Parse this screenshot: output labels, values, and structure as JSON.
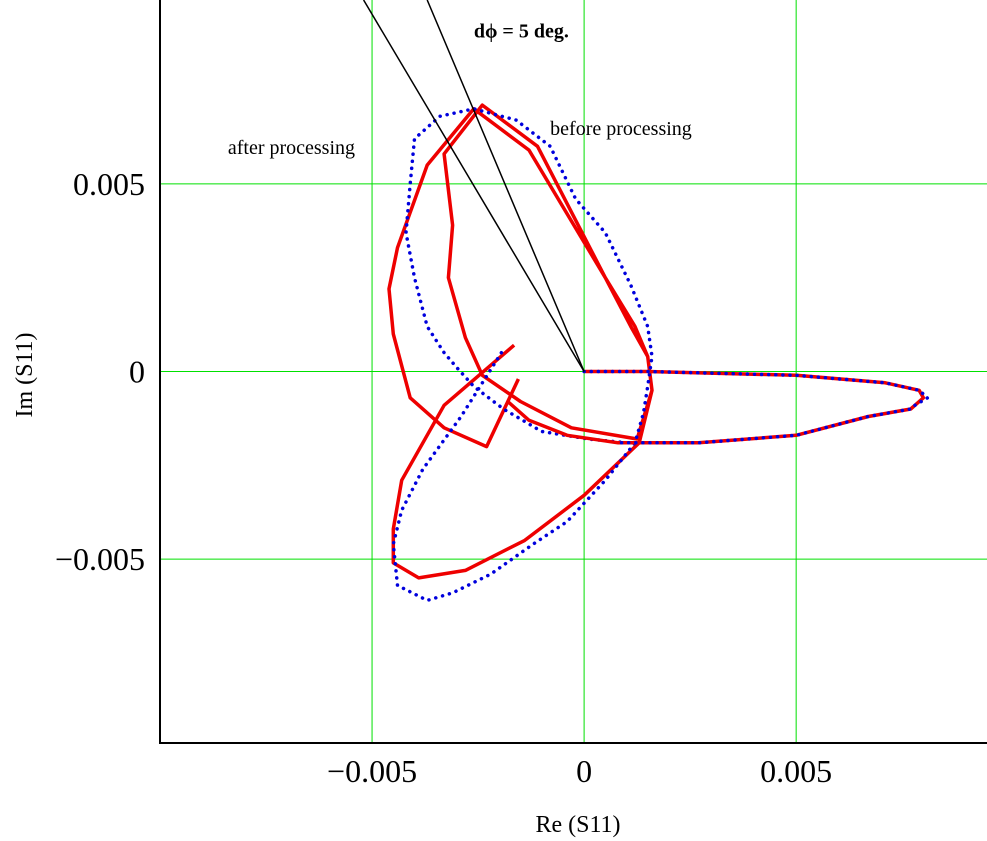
{
  "chart_data": {
    "type": "line",
    "title": "",
    "xlabel": "Re (S11)",
    "ylabel": "Im (S11)",
    "xlim": [
      -0.01,
      0.0095
    ],
    "ylim": [
      -0.0099,
      0.0099
    ],
    "x_ticks": [
      -0.005,
      0,
      0.005
    ],
    "y_ticks": [
      -0.005,
      0,
      0.005
    ],
    "x_tick_labels": [
      "−0.005",
      "0",
      "0.005"
    ],
    "y_tick_labels": [
      "−0.005",
      "0",
      "0.005"
    ],
    "grid": true,
    "grid_color": "#00e000",
    "annotations": [
      {
        "id": "dphi",
        "text": "dϕ = 5 deg.",
        "bold": true,
        "x": -0.0026,
        "y": 0.0089
      },
      {
        "id": "before",
        "text": "before processing",
        "x": -0.0008,
        "y": 0.0063
      },
      {
        "id": "after",
        "text": "after processing",
        "x": -0.0084,
        "y": 0.0058
      }
    ],
    "series": [
      {
        "style": "solid",
        "color": "#ee0000",
        "width": 3.5,
        "x": [
          -0.00165,
          -0.0033,
          -0.0043,
          -0.0045,
          -0.0045,
          -0.0039,
          -0.0028,
          -0.0014,
          0,
          0.0013,
          0.0016,
          0.0015,
          0.0012,
          0.0005,
          -0.0011,
          -0.0024,
          -0.0033,
          -0.0031,
          -0.0032,
          -0.0028,
          -0.0024,
          -0.0015,
          -0.0003,
          0.00125,
          0.0016,
          0.0015,
          0.0011,
          0.0005,
          -0.0013,
          -0.0026,
          -0.0037,
          -0.0044,
          -0.0046,
          -0.0045,
          -0.0041,
          -0.0033,
          -0.0023,
          -0.00155
        ],
        "y": [
          0.0007,
          -0.0009,
          -0.0029,
          -0.0042,
          -0.0051,
          -0.0055,
          -0.0053,
          -0.0045,
          -0.0033,
          -0.0019,
          -0.0005,
          0.0004,
          0.0012,
          0.0025,
          0.006,
          0.0071,
          0.0058,
          0.0039,
          0.0025,
          0.0009,
          -0.0001,
          -0.0008,
          -0.0015,
          -0.0018,
          -0.0005,
          0.0004,
          0.0012,
          0.0025,
          0.0059,
          0.007,
          0.0055,
          0.0033,
          0.0022,
          0.001,
          -0.0007,
          -0.0015,
          -0.002,
          -0.0002
        ]
      },
      {
        "style": "dotted",
        "color": "#0000dd",
        "width": 3.5,
        "x": [
          -0.00195,
          -0.0029,
          -0.0038,
          -0.0043,
          -0.0045,
          -0.0044,
          -0.0037,
          -0.0031,
          -0.0022,
          -0.0012,
          -0.0004,
          0.0005,
          0.0012,
          0.0014,
          0.0015,
          0.0016,
          0.0015,
          0.0011,
          0.0005,
          -0.0002,
          -0.0008,
          -0.0016,
          -0.0026,
          -0.0034,
          -0.004,
          -0.0041,
          -0.0042,
          -0.004,
          -0.0037,
          -0.0033,
          -0.003,
          -0.0026,
          -0.0019,
          -0.001,
          0.0001,
          0.001,
          0.0016
        ],
        "y": [
          0.0005,
          -0.0012,
          -0.0026,
          -0.0037,
          -0.0046,
          -0.0057,
          -0.0061,
          -0.0059,
          -0.0054,
          -0.0046,
          -0.004,
          -0.0029,
          -0.0019,
          -0.0011,
          -0.0004,
          0.0004,
          0.0012,
          0.0023,
          0.0037,
          0.0046,
          0.006,
          0.0067,
          0.007,
          0.0068,
          0.0062,
          0.005,
          0.0037,
          0.0025,
          0.0012,
          0.0005,
          0.0001,
          -0.0004,
          -0.001,
          -0.0016,
          -0.0018,
          -0.0019,
          -0.0019
        ]
      },
      {
        "style": "solid",
        "color": "#ee0000",
        "width": 3.5,
        "x": [
          0,
          0.0015,
          0.005,
          0.0071,
          0.0079,
          0.008,
          0.0078,
          0.0077,
          0.0067,
          0.005,
          0.0027,
          0.0008,
          -0.0004,
          -0.0013,
          -0.0018
        ],
        "y": [
          0,
          0,
          -0.0001,
          -0.0003,
          -0.0005,
          -0.0007,
          -0.0009,
          -0.001,
          -0.0012,
          -0.0017,
          -0.0019,
          -0.0019,
          -0.0017,
          -0.0013,
          -0.0008
        ]
      },
      {
        "style": "dotted",
        "color": "#0000dd",
        "width": 3.5,
        "x": [
          0,
          0.0015,
          0.005,
          0.0071,
          0.0079,
          0.0081,
          0.0078,
          0.0077,
          0.0067,
          0.005,
          0.0027,
          0.0008
        ],
        "y": [
          0,
          0,
          -0.0001,
          -0.0003,
          -0.0005,
          -0.0007,
          -0.0009,
          -0.001,
          -0.0012,
          -0.0017,
          -0.0019,
          -0.0019
        ]
      },
      {
        "style": "solid",
        "color": "#000000",
        "width": 1.5,
        "x": [
          0,
          -0.0052
        ],
        "y": [
          0,
          0.0099
        ]
      },
      {
        "style": "solid",
        "color": "#000000",
        "width": 1.5,
        "x": [
          0,
          -0.0037
        ],
        "y": [
          0,
          0.0099
        ]
      }
    ]
  }
}
